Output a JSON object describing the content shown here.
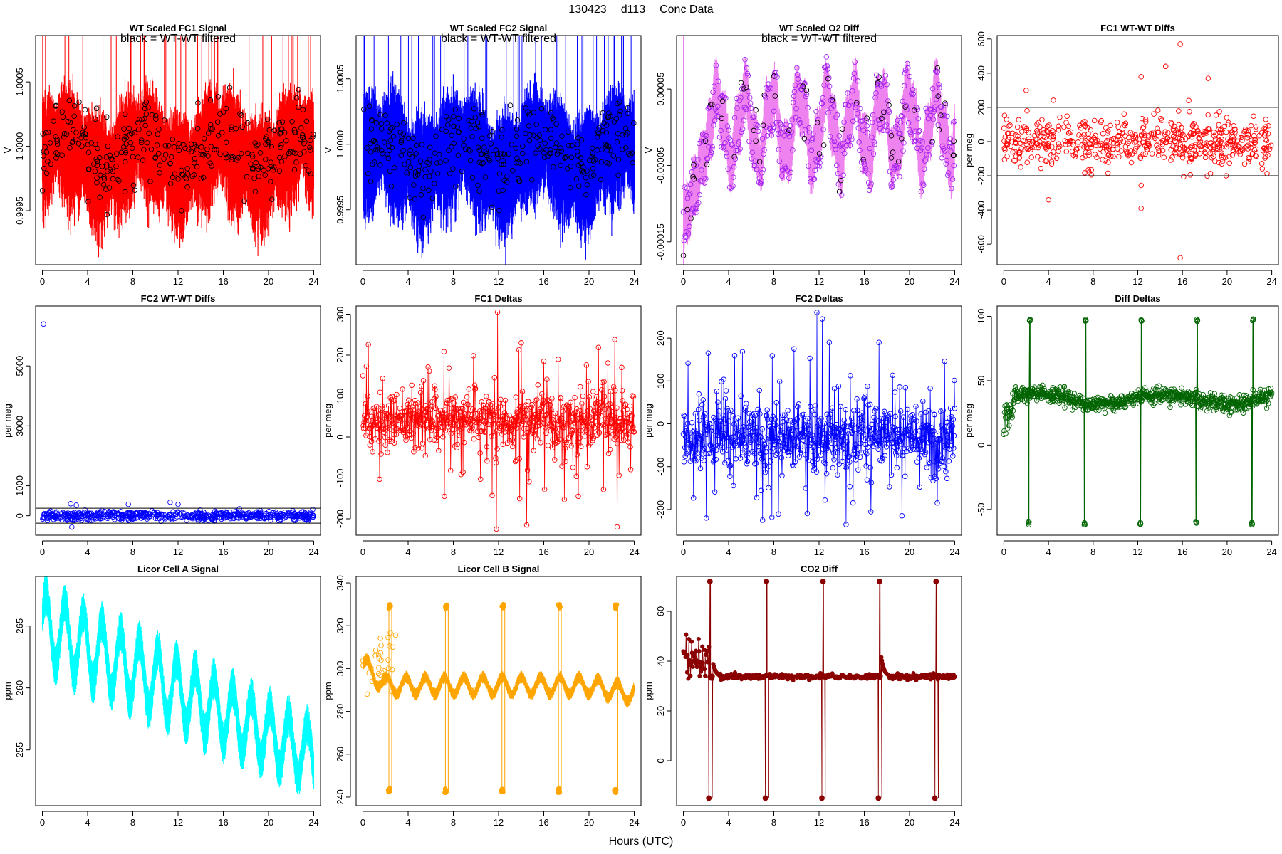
{
  "header": {
    "date": "130423",
    "day": "d113",
    "title": "Conc Data"
  },
  "footer": {
    "xlabel": "Hours (UTC)"
  },
  "chart_data": [
    {
      "id": "p1",
      "type": "line",
      "title": "WT Scaled FC1 Signal",
      "note": "black = WT-WT filtered",
      "ylabel": "V",
      "ylim": [
        0.99908,
        1.00086
      ],
      "yticks": [
        0.9995,
        1.0,
        1.0005
      ],
      "ytick_labels": [
        "0.9995",
        "1.0000",
        "1.0005"
      ],
      "xlim": [
        -0.6,
        24.6
      ],
      "xticks": [
        0,
        4,
        8,
        12,
        16,
        20,
        24
      ],
      "color": "#ff0000",
      "marker_color": "#000000",
      "style": "band-filtered",
      "center": 0.99998,
      "amplitude": 0.00045,
      "baseline": 0.9997,
      "seed": 11
    },
    {
      "id": "p2",
      "type": "line",
      "title": "WT Scaled FC2 Signal",
      "note": "black = WT-WT filtered",
      "ylabel": "V",
      "ylim": [
        0.99908,
        1.00083
      ],
      "yticks": [
        0.9995,
        1.0,
        1.0005
      ],
      "ytick_labels": [
        "0.9995",
        "1.0000",
        "1.0005"
      ],
      "xlim": [
        -0.6,
        24.6
      ],
      "xticks": [
        0,
        4,
        8,
        12,
        16,
        20,
        24
      ],
      "color": "#0000ff",
      "marker_color": "#000000",
      "style": "band-filtered",
      "center": 0.99995,
      "amplitude": 0.00045,
      "baseline": 0.9996,
      "seed": 23
    },
    {
      "id": "p3",
      "type": "line",
      "title": "WT Scaled O2 Diff",
      "note": "black = WT-WT filtered",
      "ylabel": "V",
      "ylim": [
        -0.00018,
        0.00012
      ],
      "yticks": [
        -0.00015,
        -5e-05,
        5e-05
      ],
      "ytick_labels": [
        "-0.00015",
        "-0.00005",
        "0.00005"
      ],
      "xlim": [
        -0.6,
        24.6
      ],
      "xticks": [
        0,
        4,
        8,
        12,
        16,
        20,
        24
      ],
      "color": "#ee82ee",
      "marker_color": "#a020f0",
      "style": "o2diff",
      "center": 0.0,
      "amplitude": 4e-05,
      "seed": 37
    },
    {
      "id": "p4",
      "type": "scatter",
      "title": "FC1 WT-WT Diffs",
      "ylabel": "per meg",
      "ylim": [
        -720,
        620
      ],
      "yticks": [
        -600,
        -400,
        -200,
        0,
        200,
        400,
        600
      ],
      "ytick_labels": [
        "-600",
        "-400",
        "-200",
        "0",
        "200",
        "400",
        "600"
      ],
      "xlim": [
        -0.6,
        24.6
      ],
      "xticks": [
        0,
        4,
        8,
        12,
        16,
        20,
        24
      ],
      "color": "#ff0000",
      "style": "scatter",
      "center": 0,
      "spread": 75,
      "hlines": [
        -200,
        200
      ],
      "outliers": [
        [
          15.8,
          570
        ],
        [
          15.8,
          -680
        ],
        [
          14.5,
          440
        ],
        [
          12.3,
          380
        ],
        [
          18.3,
          370
        ],
        [
          2.0,
          300
        ],
        [
          12.3,
          -390
        ],
        [
          4.0,
          -340
        ]
      ],
      "seed": 41
    },
    {
      "id": "p5",
      "type": "scatter",
      "title": "FC2 WT-WT Diffs",
      "ylabel": "per meg",
      "ylim": [
        -650,
        7000
      ],
      "yticks": [
        0,
        1000,
        3000,
        5000
      ],
      "ytick_labels": [
        "0",
        "1000",
        "3000",
        "5000"
      ],
      "xlim": [
        -0.6,
        24.6
      ],
      "xticks": [
        0,
        4,
        8,
        12,
        16,
        20,
        24
      ],
      "color": "#0000ff",
      "style": "scatter",
      "center": 0,
      "spread": 75,
      "hlines": [
        -250,
        250
      ],
      "outliers": [
        [
          0.1,
          6400
        ],
        [
          2.5,
          400
        ],
        [
          3.0,
          350
        ],
        [
          7.6,
          380
        ],
        [
          11.3,
          450
        ],
        [
          12.0,
          380
        ],
        [
          2.6,
          -380
        ]
      ],
      "seed": 53
    },
    {
      "id": "p6",
      "type": "line",
      "title": "FC1 Deltas",
      "ylabel": "per meg",
      "ylim": [
        -240,
        320
      ],
      "yticks": [
        -200,
        -100,
        0,
        100,
        200,
        300
      ],
      "ytick_labels": [
        "-200",
        "-100",
        "0",
        "100",
        "200",
        "300"
      ],
      "xlim": [
        -0.6,
        24.6
      ],
      "xticks": [
        0,
        4,
        8,
        12,
        16,
        20,
        24
      ],
      "color": "#ff0000",
      "style": "deltas",
      "center": 40,
      "spread": 35,
      "spikes": [
        [
          11.9,
          305
        ],
        [
          11.8,
          -225
        ],
        [
          14.5,
          -215
        ],
        [
          14.0,
          230
        ],
        [
          7.2,
          -145
        ],
        [
          16.0,
          185
        ],
        [
          22.5,
          -220
        ],
        [
          22.9,
          170
        ],
        [
          2.8,
          90
        ]
      ],
      "seed": 67
    },
    {
      "id": "p7",
      "type": "line",
      "title": "FC2 Deltas",
      "ylabel": "per meg",
      "ylim": [
        -260,
        275
      ],
      "yticks": [
        -200,
        -100,
        0,
        100,
        200
      ],
      "ytick_labels": [
        "-200",
        "-100",
        "0",
        "100",
        "200"
      ],
      "xlim": [
        -0.6,
        24.6
      ],
      "xticks": [
        0,
        4,
        8,
        12,
        16,
        20,
        24
      ],
      "color": "#0000ff",
      "style": "deltas",
      "center": -30,
      "spread": 40,
      "spikes": [
        [
          11.8,
          260
        ],
        [
          12.3,
          245
        ],
        [
          12.9,
          190
        ],
        [
          14.4,
          -235
        ],
        [
          7.0,
          -225
        ],
        [
          15.0,
          215
        ],
        [
          9.8,
          175
        ],
        [
          2.2,
          165
        ],
        [
          17.3,
          190
        ]
      ],
      "seed": 79
    },
    {
      "id": "p8",
      "type": "line",
      "title": "Diff Deltas",
      "ylabel": "per meg",
      "ylim": [
        -70,
        108
      ],
      "yticks": [
        -50,
        0,
        50,
        100
      ],
      "ytick_labels": [
        "-50",
        "0",
        "50",
        "100"
      ],
      "xlim": [
        -0.6,
        24.6
      ],
      "xticks": [
        0,
        4,
        8,
        12,
        16,
        20,
        24
      ],
      "color": "#006400",
      "style": "diffdeltas",
      "center": 36,
      "spread": 3,
      "cal_times": [
        2.3,
        7.3,
        12.3,
        17.3,
        22.3
      ],
      "cal_high": 98,
      "cal_low": -62,
      "seed": 83
    },
    {
      "id": "p9",
      "type": "line",
      "title": "Licor Cell A Signal",
      "ylabel": "ppm",
      "ylim": [
        250.5,
        269.0
      ],
      "yticks": [
        255,
        260,
        265
      ],
      "ytick_labels": [
        "255",
        "260",
        "265"
      ],
      "xlim": [
        -0.6,
        24.6
      ],
      "xticks": [
        0,
        4,
        8,
        12,
        16,
        20,
        24
      ],
      "color": "#00ffff",
      "style": "licorA",
      "start": 265.0,
      "end": 254.5,
      "amplitude": 2.5,
      "seed": 97
    },
    {
      "id": "p10",
      "type": "line",
      "title": "Licor Cell B Signal",
      "ylabel": "ppm",
      "ylim": [
        236,
        343
      ],
      "yticks": [
        240,
        260,
        280,
        300,
        320,
        340
      ],
      "ytick_labels": [
        "240",
        "260",
        "280",
        "300",
        "320",
        "340"
      ],
      "xlim": [
        -0.6,
        24.6
      ],
      "xticks": [
        0,
        4,
        8,
        12,
        16,
        20,
        24
      ],
      "color": "#ffa500",
      "style": "licorB",
      "center": 292,
      "cal_times": [
        2.3,
        7.3,
        12.3,
        17.3,
        22.3
      ],
      "cal_high": 330,
      "cal_low": 242,
      "seed": 101
    },
    {
      "id": "p11",
      "type": "line",
      "title": "CO2 Diff",
      "ylabel": "ppm",
      "ylim": [
        -18,
        74
      ],
      "yticks": [
        0,
        20,
        40,
        60
      ],
      "ytick_labels": [
        "0",
        "20",
        "40",
        "60"
      ],
      "xlim": [
        -0.6,
        24.6
      ],
      "xticks": [
        0,
        4,
        8,
        12,
        16,
        20,
        24
      ],
      "color": "#8b0000",
      "style": "co2diff",
      "center": 33.8,
      "cal_times": [
        2.3,
        7.3,
        12.3,
        17.3,
        22.3
      ],
      "cal_high": 72,
      "cal_low": -15,
      "seed": 113
    }
  ]
}
